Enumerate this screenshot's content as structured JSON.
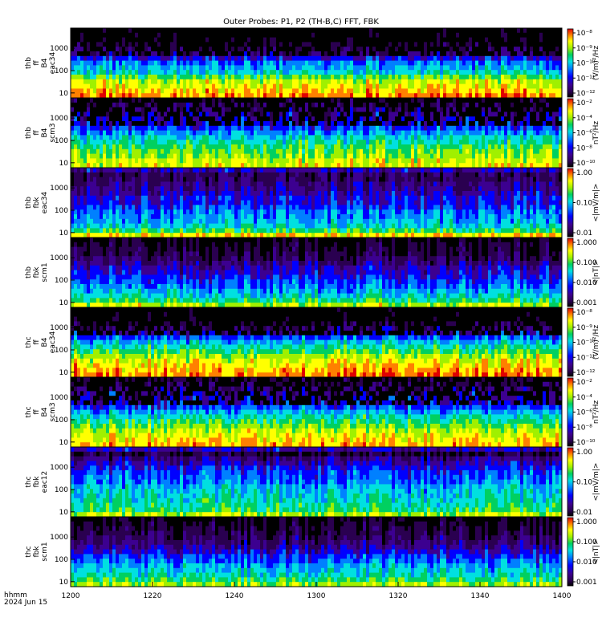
{
  "title": "Outer Probes: P1, P2 (TH-B,C) FFT, FBK",
  "footer": {
    "line1": "hhmm",
    "line2": "2024 Jun 15"
  },
  "chart_data": {
    "type": "heatmap",
    "x_axis": {
      "range": [
        1200,
        1400
      ],
      "tick_labels": [
        "1200",
        "1220",
        "1240",
        "1300",
        "1320",
        "1340",
        "1400"
      ]
    },
    "panels": [
      {
        "id": "thb-ff-eac34",
        "label": [
          "thb",
          "ff",
          "B4",
          "eac34"
        ],
        "y_ticks": [
          "1000",
          "100",
          "10"
        ],
        "cbar_ticks": [
          "10⁻⁸",
          "10⁻⁹",
          "10⁻¹⁰",
          "10⁻¹¹",
          "10⁻¹²"
        ],
        "cbar_unit": "(V/m)²/Hz",
        "cbar_kind": "rainbow",
        "colormap": "thb_ff_e"
      },
      {
        "id": "thb-ff-scm3",
        "label": [
          "thb",
          "ff",
          "B4",
          "scm3"
        ],
        "y_ticks": [
          "1000",
          "100",
          "10"
        ],
        "cbar_ticks": [
          "10⁻²",
          "10⁻⁴",
          "10⁻⁶",
          "10⁻⁸",
          "10⁻¹⁰"
        ],
        "cbar_unit": "nT²/Hz",
        "cbar_kind": "rainbow",
        "colormap": "thb_ff_b"
      },
      {
        "id": "thb-fbk-eac34",
        "label": [
          "thb",
          "fbk",
          "eac34"
        ],
        "y_ticks": [
          "1000",
          "100",
          "10"
        ],
        "cbar_ticks": [
          "1.00",
          "0.10",
          "0.01"
        ],
        "cbar_unit": "<|mV/m|>",
        "cbar_kind": "rainbow",
        "colormap": "thb_fbk_e"
      },
      {
        "id": "thb-fbk-scm1",
        "label": [
          "thb",
          "fbk",
          "scm1"
        ],
        "y_ticks": [
          "1000",
          "100",
          "10"
        ],
        "cbar_ticks": [
          "1.000",
          "0.100",
          "0.010",
          "0.001"
        ],
        "cbar_unit": "<|nT|>",
        "cbar_kind": "rainbow",
        "colormap": "thb_fbk_b"
      },
      {
        "id": "thc-ff-eac34",
        "label": [
          "thc",
          "ff",
          "B4",
          "eac34"
        ],
        "y_ticks": [
          "1000",
          "100",
          "10"
        ],
        "cbar_ticks": [
          "10⁻⁸",
          "10⁻⁹",
          "10⁻¹⁰",
          "10⁻¹¹",
          "10⁻¹²"
        ],
        "cbar_unit": "(V/m)²/Hz",
        "cbar_kind": "rainbow",
        "colormap": "thc_ff_e"
      },
      {
        "id": "thc-ff-scm3",
        "label": [
          "thc",
          "ff",
          "B4",
          "scm3"
        ],
        "y_ticks": [
          "1000",
          "100",
          "10"
        ],
        "cbar_ticks": [
          "10⁻²",
          "10⁻⁴",
          "10⁻⁶",
          "10⁻⁸",
          "10⁻¹⁰"
        ],
        "cbar_unit": "nT²/Hz",
        "cbar_kind": "rainbow",
        "colormap": "thc_ff_b"
      },
      {
        "id": "thc-fbk-eac12",
        "label": [
          "thc",
          "fbk",
          "eac12"
        ],
        "y_ticks": [
          "1000",
          "100",
          "10"
        ],
        "cbar_ticks": [
          "1.00",
          "0.10",
          "0.01"
        ],
        "cbar_unit": "<|mV/m|>",
        "cbar_kind": "rainbow",
        "colormap": "thc_fbk_e"
      },
      {
        "id": "thc-fbk-scm1",
        "label": [
          "thc",
          "fbk",
          "scm1"
        ],
        "y_ticks": [
          "1000",
          "100",
          "10"
        ],
        "cbar_ticks": [
          "1.000",
          "0.100",
          "0.010",
          "0.001"
        ],
        "cbar_unit": "<|nT|>",
        "cbar_kind": "rainbow",
        "colormap": "thc_fbk_b"
      }
    ]
  }
}
